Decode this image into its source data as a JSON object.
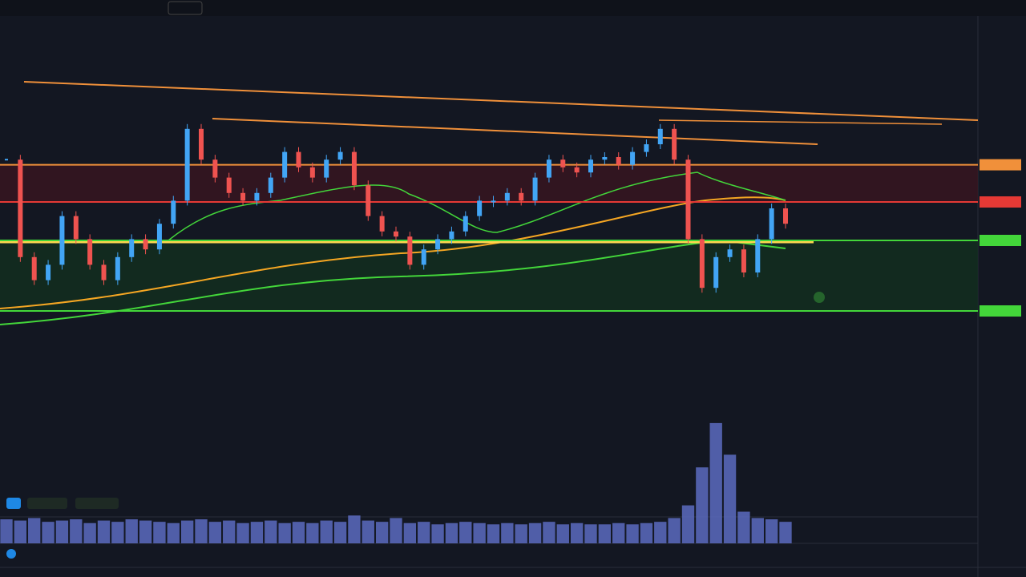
{
  "chart_data": {
    "type": "candlestick",
    "ylim": [
      0,
      100
    ],
    "up_color": "#42a5f5",
    "down_color": "#ef5350",
    "values": [
      69,
      31,
      22,
      28,
      47,
      38,
      28,
      22,
      31,
      38,
      34,
      44,
      53,
      81,
      69,
      62,
      56,
      53,
      56,
      62,
      72,
      66,
      62,
      69,
      72,
      59,
      47,
      41,
      39,
      28,
      34,
      38,
      41,
      47,
      53,
      53,
      56,
      53,
      62,
      69,
      66,
      64,
      69,
      70,
      67,
      72,
      75,
      81,
      69,
      38,
      19,
      31,
      34,
      25,
      38,
      50,
      44
    ],
    "levels": [
      {
        "value": 67,
        "color": "#f0903a"
      },
      {
        "value": 52.5,
        "color": "#e53935"
      },
      {
        "value": 37.5,
        "color": "#43d63a"
      },
      {
        "value": 10,
        "color": "#43d63a"
      }
    ],
    "volume": {
      "ylim": [
        0,
        100
      ],
      "color": "#5c6bc0",
      "values": [
        19,
        18,
        20,
        17,
        18,
        19,
        16,
        18,
        17,
        19,
        18,
        17,
        16,
        18,
        19,
        17,
        18,
        16,
        17,
        18,
        16,
        17,
        16,
        18,
        17,
        22,
        18,
        17,
        20,
        16,
        17,
        15,
        16,
        17,
        16,
        15,
        16,
        15,
        16,
        17,
        15,
        16,
        15,
        15,
        16,
        15,
        16,
        17,
        20,
        30,
        60,
        95,
        70,
        25,
        20,
        19,
        17
      ]
    }
  }
}
